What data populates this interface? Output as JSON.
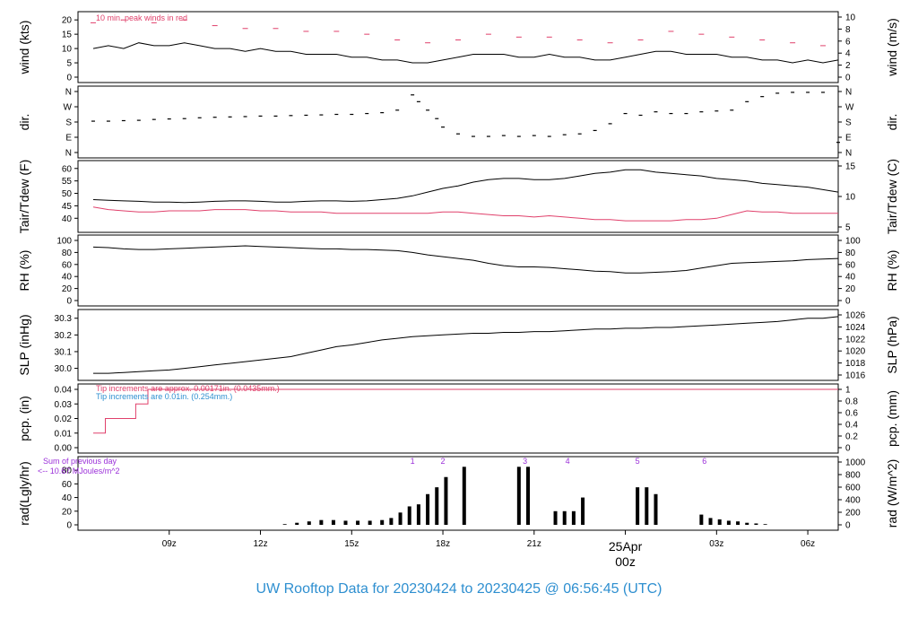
{
  "title": "UW Rooftop Data for 20230424  to  20230425 @ 06:56:45  (UTC)",
  "colors": {
    "series_main": "#000000",
    "accent_red": "#e0406b",
    "accent_blue": "#2e8fd0",
    "accent_purple": "#9b30d9"
  },
  "chart_data": [
    {
      "id": "wind",
      "type": "line",
      "ylabel": "wind (kts)",
      "ylabel_right": "wind (m/s)",
      "ylim": [
        0,
        21
      ],
      "yticks": [
        0,
        5,
        10,
        15,
        20
      ],
      "yticks_right": [
        "0",
        "2",
        "4",
        "6",
        "8",
        "10"
      ],
      "annotation": "10 min. peak winds in red",
      "series": [
        {
          "name": "wind",
          "x": [
            6.5,
            7,
            7.5,
            8,
            8.5,
            9,
            9.5,
            10,
            10.5,
            11,
            11.5,
            12,
            12.5,
            13,
            13.5,
            14,
            14.5,
            15,
            15.5,
            16,
            16.5,
            17,
            17.5,
            18,
            18.5,
            19,
            19.5,
            20,
            20.5,
            21,
            21.5,
            22,
            22.5,
            23,
            23.5,
            24,
            24.5,
            25,
            25.5,
            26,
            26.5,
            27,
            27.5,
            28,
            28.5,
            29,
            29.5,
            30,
            30.5,
            31
          ],
          "y": [
            10,
            11,
            10,
            12,
            11,
            11,
            12,
            11,
            10,
            10,
            9,
            10,
            9,
            9,
            8,
            8,
            8,
            7,
            7,
            6,
            6,
            5,
            5,
            6,
            7,
            8,
            8,
            8,
            7,
            7,
            8,
            7,
            7,
            6,
            6,
            7,
            8,
            9,
            9,
            8,
            8,
            8,
            7,
            7,
            6,
            6,
            5,
            6,
            5,
            6
          ]
        },
        {
          "name": "10 min. peak winds",
          "x": [
            6.5,
            7.5,
            8.5,
            9.5,
            10.5,
            11.5,
            12.5,
            13.5,
            14.5,
            15.5,
            16.5,
            17.5,
            18.5,
            19.5,
            20.5,
            21.5,
            22.5,
            23.5,
            24.5,
            25.5,
            26.5,
            27.5,
            28.5,
            29.5,
            30.5
          ],
          "y": [
            19,
            20,
            19,
            20,
            18,
            17,
            17,
            16,
            16,
            15,
            13,
            12,
            13,
            15,
            14,
            14,
            13,
            12,
            13,
            16,
            15,
            14,
            13,
            12,
            11
          ]
        }
      ]
    },
    {
      "id": "dir",
      "type": "scatter",
      "ylabel": "dir.",
      "ylabel_right": "dir.",
      "ylim": [
        0,
        360
      ],
      "ytick_labels": [
        "N",
        "E",
        "S",
        "W",
        "N"
      ],
      "ytick_values": [
        0,
        90,
        180,
        270,
        360
      ],
      "series": [
        {
          "name": "dir",
          "x": [
            6.5,
            7,
            7.5,
            8,
            8.5,
            9,
            9.5,
            10,
            10.5,
            11,
            11.5,
            12,
            12.5,
            13,
            13.5,
            14,
            14.5,
            15,
            15.5,
            16,
            16.5,
            17,
            17.2,
            17.5,
            17.8,
            18,
            18.5,
            19,
            19.5,
            20,
            20.5,
            21,
            21.5,
            22,
            22.5,
            23,
            23.5,
            24,
            24.5,
            25,
            25.5,
            26,
            26.5,
            27,
            27.5,
            28,
            28.5,
            29,
            29.5,
            30,
            30.5,
            31
          ],
          "y": [
            185,
            185,
            188,
            190,
            195,
            198,
            200,
            205,
            208,
            210,
            212,
            215,
            215,
            218,
            220,
            222,
            225,
            225,
            230,
            235,
            250,
            340,
            300,
            250,
            200,
            150,
            110,
            95,
            95,
            100,
            95,
            100,
            95,
            105,
            110,
            130,
            170,
            230,
            220,
            240,
            230,
            230,
            240,
            245,
            250,
            300,
            330,
            350,
            355,
            355,
            355,
            60
          ]
        }
      ]
    },
    {
      "id": "temp",
      "type": "line",
      "ylabel": "Tair/Tdew (F)",
      "ylabel_right": "Tair/Tdew (C)",
      "ylim": [
        36.5,
        61
      ],
      "yticks": [
        40,
        45,
        50,
        55,
        60
      ],
      "yticks_right": [
        "5",
        "10",
        "15"
      ],
      "series": [
        {
          "name": "Tair",
          "x": [
            6.5,
            7,
            7.5,
            8,
            8.5,
            9,
            9.5,
            10,
            10.5,
            11,
            11.5,
            12,
            12.5,
            13,
            13.5,
            14,
            14.5,
            15,
            15.5,
            16,
            16.5,
            17,
            17.5,
            18,
            18.5,
            19,
            19.5,
            20,
            20.5,
            21,
            21.5,
            22,
            22.5,
            23,
            23.5,
            24,
            24.5,
            25,
            25.5,
            26,
            26.5,
            27,
            27.5,
            28,
            28.5,
            29,
            29.5,
            30,
            30.5,
            31
          ],
          "y": [
            47.5,
            47.2,
            47,
            46.8,
            46.5,
            46.5,
            46.3,
            46.5,
            46.8,
            47,
            47,
            46.8,
            46.5,
            46.5,
            46.8,
            47,
            47,
            46.8,
            47,
            47.5,
            48,
            49,
            50.5,
            52,
            53,
            54.5,
            55.5,
            56,
            56,
            55.5,
            55.5,
            56,
            57,
            58,
            58.5,
            59.5,
            59.5,
            58.5,
            58,
            57.5,
            57,
            56,
            55.5,
            55,
            54,
            53.5,
            53,
            52.5,
            51.5,
            50.5
          ]
        },
        {
          "name": "Tdew",
          "x": [
            6.5,
            7,
            7.5,
            8,
            8.5,
            9,
            9.5,
            10,
            10.5,
            11,
            11.5,
            12,
            12.5,
            13,
            13.5,
            14,
            14.5,
            15,
            15.5,
            16,
            16.5,
            17,
            17.5,
            18,
            18.5,
            19,
            19.5,
            20,
            20.5,
            21,
            21.5,
            22,
            22.5,
            23,
            23.5,
            24,
            24.5,
            25,
            25.5,
            26,
            26.5,
            27,
            27.5,
            28,
            28.5,
            29,
            29.5,
            30,
            30.5,
            31
          ],
          "y": [
            44.5,
            43.5,
            43,
            42.5,
            42.5,
            43,
            43,
            43,
            43.5,
            43.5,
            43.5,
            43,
            43,
            42.5,
            42.5,
            42.5,
            42,
            42,
            42,
            42,
            42,
            42,
            42,
            42.5,
            42.5,
            42,
            41.5,
            41,
            41,
            40.5,
            41,
            40.5,
            40,
            39.5,
            39.5,
            39,
            39,
            39,
            39,
            39.5,
            39.5,
            40,
            41.5,
            43,
            42.5,
            42.5,
            42,
            42,
            42,
            42
          ]
        }
      ]
    },
    {
      "id": "rh",
      "type": "line",
      "ylabel": "RH (%)",
      "ylabel_right": "RH (%)",
      "ylim": [
        0,
        100
      ],
      "yticks": [
        0,
        20,
        40,
        60,
        80,
        100
      ],
      "yticks_right": [
        "0",
        "20",
        "40",
        "60",
        "80",
        "100"
      ],
      "series": [
        {
          "name": "RH",
          "x": [
            6.5,
            7,
            7.5,
            8,
            8.5,
            9,
            9.5,
            10,
            10.5,
            11,
            11.5,
            12,
            12.5,
            13,
            13.5,
            14,
            14.5,
            15,
            15.5,
            16,
            16.5,
            17,
            17.5,
            18,
            18.5,
            19,
            19.5,
            20,
            20.5,
            21,
            21.5,
            22,
            22.5,
            23,
            23.5,
            24,
            24.5,
            25,
            25.5,
            26,
            26.5,
            27,
            27.5,
            28,
            28.5,
            29,
            29.5,
            30,
            30.5,
            31
          ],
          "y": [
            89,
            88,
            86,
            85,
            85,
            86,
            87,
            88,
            89,
            90,
            91,
            90,
            89,
            88,
            87,
            86,
            86,
            85,
            85,
            84,
            83,
            80,
            76,
            73,
            70,
            67,
            62,
            58,
            56,
            56,
            55,
            53,
            51,
            49,
            48,
            46,
            46,
            47,
            48,
            50,
            54,
            58,
            62,
            63,
            64,
            65,
            66,
            68,
            69,
            70
          ]
        }
      ]
    },
    {
      "id": "slp",
      "type": "line",
      "ylabel": "SLP (inHg)",
      "ylabel_right": "SLP (hPa)",
      "ylim": [
        29.96,
        30.32
      ],
      "yticks": [
        "30.0",
        "30.1",
        "30.2",
        "30.3"
      ],
      "ytick_values": [
        30.0,
        30.1,
        30.2,
        30.3
      ],
      "yticks_right": [
        "1016",
        "1018",
        "1020",
        "1022",
        "1024",
        "1026"
      ],
      "series": [
        {
          "name": "SLP",
          "x": [
            6.5,
            7,
            7.5,
            8,
            8.5,
            9,
            9.5,
            10,
            10.5,
            11,
            11.5,
            12,
            12.5,
            13,
            13.5,
            14,
            14.5,
            15,
            15.5,
            16,
            16.5,
            17,
            17.5,
            18,
            18.5,
            19,
            19.5,
            20,
            20.5,
            21,
            21.5,
            22,
            22.5,
            23,
            23.5,
            24,
            24.5,
            25,
            25.5,
            26,
            26.5,
            27,
            27.5,
            28,
            28.5,
            29,
            29.5,
            30,
            30.5,
            31
          ],
          "y": [
            29.97,
            29.97,
            29.975,
            29.98,
            29.985,
            29.99,
            30.0,
            30.01,
            30.02,
            30.03,
            30.04,
            30.05,
            30.06,
            30.07,
            30.09,
            30.11,
            30.13,
            30.14,
            30.155,
            30.17,
            30.18,
            30.19,
            30.195,
            30.2,
            30.205,
            30.21,
            30.21,
            30.215,
            30.215,
            30.22,
            30.22,
            30.225,
            30.23,
            30.235,
            30.235,
            30.24,
            30.24,
            30.245,
            30.245,
            30.25,
            30.255,
            30.26,
            30.265,
            30.27,
            30.275,
            30.28,
            30.29,
            30.3,
            30.3,
            30.31
          ]
        }
      ]
    },
    {
      "id": "pcp",
      "type": "line",
      "ylabel": "pcp. (in)",
      "ylabel_right": "pcp. (mm)",
      "ylim": [
        0,
        0.04
      ],
      "yticks": [
        "0.00",
        "0.01",
        "0.02",
        "0.03",
        "0.04"
      ],
      "ytick_values": [
        0,
        0.01,
        0.02,
        0.03,
        0.04
      ],
      "yticks_right": [
        "0",
        "0.2",
        "0.4",
        "0.6",
        "0.8",
        "1"
      ],
      "notes": [
        "Tip increments are approx. 0.00171in. (0.0435mm.)",
        "Tip increments are 0.01in. (0.254mm.)"
      ],
      "series": [
        {
          "name": "pcp (approx tips)",
          "x": [
            6.5,
            6.9,
            6.9,
            7.9,
            7.9,
            8.3,
            8.3,
            31
          ],
          "y": [
            0.01,
            0.01,
            0.02,
            0.02,
            0.03,
            0.03,
            0.04,
            0.04
          ]
        }
      ]
    },
    {
      "id": "rad",
      "type": "bar",
      "ylabel": "rad(Lgly/hr)",
      "ylabel_right": "rad (W/m^2)",
      "ylim": [
        0,
        92
      ],
      "yticks": [
        0,
        20,
        40,
        60,
        80
      ],
      "yticks_right": [
        "0",
        "200",
        "400",
        "600",
        "800",
        "1000"
      ],
      "notes": [
        "Sum of previous day",
        "<-- 10.67 MJoules/m^2"
      ],
      "markers": [
        {
          "label": "1",
          "x": 17.0
        },
        {
          "label": "2",
          "x": 18.0
        },
        {
          "label": "3",
          "x": 20.7
        },
        {
          "label": "4",
          "x": 22.1
        },
        {
          "label": "5",
          "x": 24.4
        },
        {
          "label": "6",
          "x": 26.6
        }
      ],
      "series": [
        {
          "name": "rad",
          "x": [
            12.8,
            13.2,
            13.6,
            14,
            14.4,
            14.8,
            15.2,
            15.6,
            16,
            16.3,
            16.6,
            16.9,
            17.2,
            17.5,
            17.8,
            18.1,
            18.4,
            18.7,
            19,
            19.3,
            19.6,
            19.9,
            20.2,
            20.5,
            20.8,
            21.1,
            21.4,
            21.7,
            22,
            22.3,
            22.6,
            22.9,
            23.2,
            23.5,
            23.8,
            24.1,
            24.4,
            24.7,
            25,
            25.3,
            25.6,
            25.9,
            26.2,
            26.5,
            26.8,
            27.1,
            27.4,
            27.7,
            28,
            28.3,
            28.6,
            28.9
          ],
          "y": [
            1,
            3,
            5,
            7,
            7,
            6,
            6,
            6,
            7,
            10,
            18,
            27,
            30,
            45,
            55,
            70,
            0,
            85,
            0,
            0,
            0,
            0,
            0,
            85,
            85,
            0,
            0,
            20,
            20,
            20,
            40,
            0,
            0,
            0,
            0,
            0,
            55,
            55,
            45,
            0,
            0,
            0,
            0,
            15,
            10,
            8,
            6,
            5,
            3,
            2,
            1,
            0
          ]
        }
      ]
    }
  ],
  "xaxis": {
    "xlim": [
      6.0,
      31.0
    ],
    "ticks": [
      {
        "x": 9,
        "label": "09z"
      },
      {
        "x": 12,
        "label": "12z"
      },
      {
        "x": 15,
        "label": "15z"
      },
      {
        "x": 18,
        "label": "18z"
      },
      {
        "x": 21,
        "label": "21z"
      },
      {
        "x": 27,
        "label": "03z"
      },
      {
        "x": 30,
        "label": "06z"
      }
    ],
    "day_label": {
      "x": 24,
      "date": "25Apr",
      "time": "00z"
    }
  }
}
